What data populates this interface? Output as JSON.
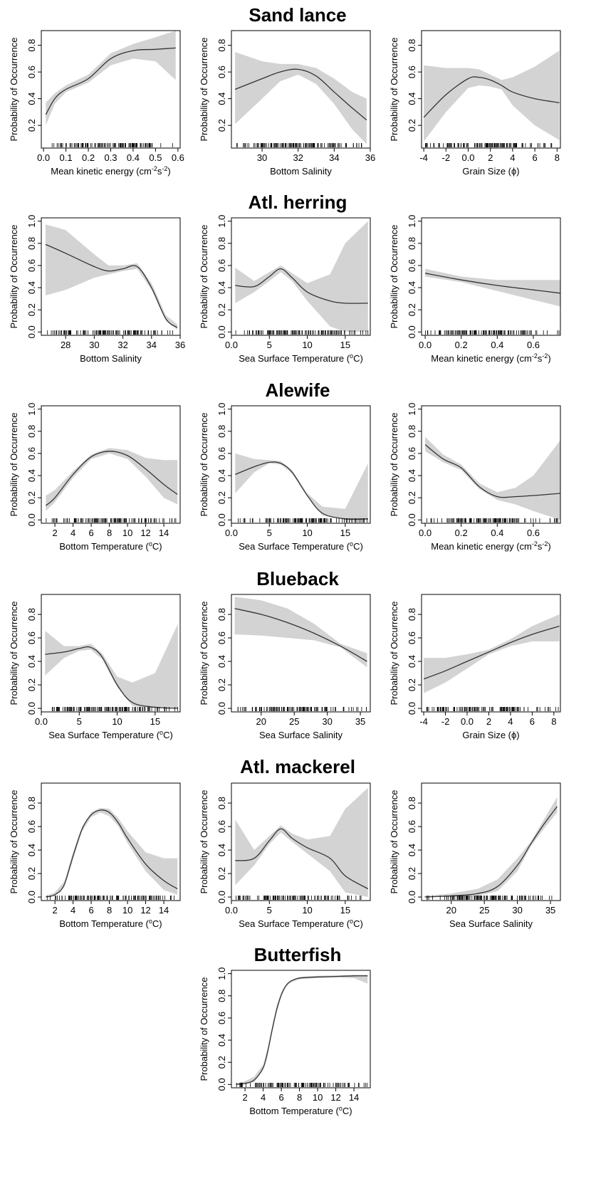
{
  "chart_data": [
    {
      "group": "Sand lance",
      "type": "line",
      "ylabel": "Probability of Occurrence",
      "xlabel": "Mean kinetic energy (cm$^{-2}$s$^{-2}$)",
      "xlim": [
        -0.01,
        0.61
      ],
      "ylim": [
        0.03,
        0.91
      ],
      "xticks": [
        0.0,
        0.1,
        0.2,
        0.3,
        0.4,
        0.5,
        0.6
      ],
      "yticks": [
        0.2,
        0.4,
        0.6,
        0.8
      ],
      "x": [
        0.01,
        0.05,
        0.1,
        0.2,
        0.3,
        0.4,
        0.5,
        0.59
      ],
      "y": [
        0.28,
        0.4,
        0.47,
        0.55,
        0.7,
        0.76,
        0.77,
        0.78
      ],
      "lower": [
        0.2,
        0.36,
        0.45,
        0.52,
        0.65,
        0.7,
        0.68,
        0.54
      ],
      "upper": [
        0.37,
        0.44,
        0.5,
        0.58,
        0.74,
        0.81,
        0.86,
        0.91
      ]
    },
    {
      "group": "Sand lance",
      "type": "line",
      "ylabel": "Probability of Occurrence",
      "xlabel": "Bottom Salinity",
      "xlim": [
        28.3,
        36.0
      ],
      "ylim": [
        0.03,
        0.91
      ],
      "xticks": [
        30,
        32,
        34,
        36
      ],
      "yticks": [
        0.2,
        0.4,
        0.6,
        0.8
      ],
      "x": [
        28.5,
        30,
        31,
        32,
        33,
        34,
        35,
        35.8
      ],
      "y": [
        0.47,
        0.55,
        0.6,
        0.62,
        0.57,
        0.45,
        0.33,
        0.24
      ],
      "lower": [
        0.21,
        0.4,
        0.53,
        0.58,
        0.51,
        0.36,
        0.17,
        0.06
      ],
      "upper": [
        0.75,
        0.68,
        0.66,
        0.66,
        0.63,
        0.55,
        0.45,
        0.4
      ]
    },
    {
      "group": "Sand lance",
      "type": "line",
      "ylabel": "Probability of Occurrence",
      "xlabel": "Grain Size (ϕ)",
      "xlim": [
        -4.2,
        8.3
      ],
      "ylim": [
        0.03,
        0.91
      ],
      "xticks": [
        -4,
        -2,
        0,
        2,
        4,
        6,
        8
      ],
      "yticks": [
        0.2,
        0.4,
        0.6,
        0.8
      ],
      "x": [
        -4,
        -2,
        0,
        1,
        2,
        3,
        4,
        6,
        8.2
      ],
      "y": [
        0.26,
        0.43,
        0.55,
        0.56,
        0.54,
        0.5,
        0.45,
        0.4,
        0.37
      ],
      "lower": [
        0.08,
        0.3,
        0.48,
        0.5,
        0.49,
        0.47,
        0.35,
        0.2,
        0.09
      ],
      "upper": [
        0.65,
        0.63,
        0.63,
        0.62,
        0.58,
        0.54,
        0.56,
        0.64,
        0.76
      ]
    },
    {
      "group": "Atl. herring",
      "type": "line",
      "ylabel": "Probability of Occurrence",
      "xlabel": "Bottom Salinity",
      "xlim": [
        26.3,
        36.0
      ],
      "ylim": [
        -0.03,
        1.03
      ],
      "xticks": [
        28,
        30,
        32,
        34,
        36
      ],
      "yticks": [
        0.0,
        0.2,
        0.4,
        0.6,
        0.8,
        1.0
      ],
      "x": [
        26.6,
        28,
        30,
        31,
        32,
        33,
        34,
        35,
        35.8
      ],
      "y": [
        0.79,
        0.71,
        0.59,
        0.55,
        0.57,
        0.59,
        0.4,
        0.12,
        0.04
      ],
      "lower": [
        0.33,
        0.38,
        0.49,
        0.52,
        0.55,
        0.57,
        0.38,
        0.1,
        0.02
      ],
      "upper": [
        0.97,
        0.92,
        0.7,
        0.6,
        0.6,
        0.62,
        0.44,
        0.15,
        0.07
      ]
    },
    {
      "group": "Atl. herring",
      "type": "line",
      "ylabel": "Probability of Occurrence",
      "xlabel": "Sea Surface Temperature ($^{o}$C)",
      "xlim": [
        0.0,
        18.3
      ],
      "ylim": [
        -0.03,
        1.03
      ],
      "xticks": [
        0,
        5,
        10,
        15
      ],
      "yticks": [
        0.0,
        0.2,
        0.4,
        0.6,
        0.8,
        1.0
      ],
      "x": [
        0.5,
        3,
        5,
        6.5,
        8,
        10,
        13,
        15,
        18
      ],
      "y": [
        0.42,
        0.41,
        0.5,
        0.57,
        0.49,
        0.36,
        0.28,
        0.26,
        0.26
      ],
      "lower": [
        0.26,
        0.36,
        0.46,
        0.54,
        0.46,
        0.28,
        0.05,
        0.0,
        0.0
      ],
      "upper": [
        0.58,
        0.46,
        0.54,
        0.6,
        0.53,
        0.44,
        0.52,
        0.8,
        1.0
      ]
    },
    {
      "group": "Atl. herring",
      "type": "line",
      "ylabel": "Probability of Occurrence",
      "xlabel": "Mean kinetic energy (cm$^{-2}$s$^{-2}$)",
      "xlim": [
        -0.02,
        0.75
      ],
      "ylim": [
        -0.03,
        1.03
      ],
      "xticks": [
        0.0,
        0.2,
        0.4,
        0.6
      ],
      "yticks": [
        0.0,
        0.2,
        0.4,
        0.6,
        0.8,
        1.0
      ],
      "x": [
        0.0,
        0.2,
        0.4,
        0.6,
        0.75
      ],
      "y": [
        0.53,
        0.47,
        0.42,
        0.38,
        0.35
      ],
      "lower": [
        0.5,
        0.45,
        0.37,
        0.29,
        0.23
      ],
      "upper": [
        0.57,
        0.5,
        0.47,
        0.47,
        0.47
      ]
    },
    {
      "group": "Alewife",
      "type": "line",
      "ylabel": "Probability of Occurrence",
      "xlabel": "Bottom Temperature ($^{o}$C)",
      "xlim": [
        0.5,
        15.8
      ],
      "ylim": [
        -0.03,
        1.03
      ],
      "xticks": [
        2,
        4,
        6,
        8,
        10,
        12,
        14
      ],
      "yticks": [
        0.0,
        0.2,
        0.4,
        0.6,
        0.8,
        1.0
      ],
      "x": [
        1,
        2,
        4,
        6,
        8,
        10,
        12,
        14,
        15.5
      ],
      "y": [
        0.13,
        0.2,
        0.41,
        0.57,
        0.62,
        0.58,
        0.46,
        0.32,
        0.23
      ],
      "lower": [
        0.08,
        0.16,
        0.38,
        0.55,
        0.6,
        0.55,
        0.39,
        0.2,
        0.14
      ],
      "upper": [
        0.22,
        0.27,
        0.44,
        0.59,
        0.65,
        0.63,
        0.56,
        0.54,
        0.54
      ]
    },
    {
      "group": "Alewife",
      "type": "line",
      "ylabel": "Probability of Occurrence",
      "xlabel": "Sea Surface Temperature ($^{o}$C)",
      "xlim": [
        0.0,
        18.3
      ],
      "ylim": [
        -0.03,
        1.03
      ],
      "xticks": [
        0,
        5,
        10,
        15
      ],
      "yticks": [
        0.0,
        0.2,
        0.4,
        0.6,
        0.8,
        1.0
      ],
      "x": [
        0.5,
        3,
        5,
        6.5,
        8,
        10,
        12,
        15,
        18
      ],
      "y": [
        0.41,
        0.48,
        0.52,
        0.51,
        0.43,
        0.22,
        0.06,
        0.01,
        0.01
      ],
      "lower": [
        0.24,
        0.43,
        0.51,
        0.5,
        0.42,
        0.21,
        0.04,
        0.0,
        0.0
      ],
      "upper": [
        0.6,
        0.55,
        0.54,
        0.53,
        0.45,
        0.24,
        0.12,
        0.1,
        0.51
      ]
    },
    {
      "group": "Alewife",
      "type": "line",
      "ylabel": "Probability of Occurrence",
      "xlabel": "Mean kinetic energy (cm$^{-2}$s$^{-2}$)",
      "xlim": [
        -0.02,
        0.75
      ],
      "ylim": [
        -0.03,
        1.03
      ],
      "xticks": [
        0.0,
        0.2,
        0.4,
        0.6
      ],
      "yticks": [
        0.0,
        0.2,
        0.4,
        0.6,
        0.8,
        1.0
      ],
      "x": [
        0.0,
        0.1,
        0.2,
        0.3,
        0.4,
        0.5,
        0.6,
        0.75
      ],
      "y": [
        0.68,
        0.55,
        0.47,
        0.3,
        0.21,
        0.21,
        0.22,
        0.24
      ],
      "lower": [
        0.62,
        0.52,
        0.45,
        0.28,
        0.18,
        0.14,
        0.08,
        0.0
      ],
      "upper": [
        0.75,
        0.59,
        0.5,
        0.33,
        0.25,
        0.29,
        0.4,
        0.72
      ]
    },
    {
      "group": "Blueback",
      "type": "line",
      "ylabel": "Probability of Occurrence",
      "xlabel": "Sea Surface Temperature ($^{o}$C)",
      "xlim": [
        0.0,
        18.3
      ],
      "ylim": [
        -0.03,
        0.97
      ],
      "xticks": [
        0,
        5,
        10,
        15
      ],
      "yticks": [
        0.0,
        0.2,
        0.4,
        0.6,
        0.8
      ],
      "x": [
        0.5,
        3,
        5,
        6.5,
        8,
        10,
        12,
        15,
        18
      ],
      "y": [
        0.46,
        0.48,
        0.51,
        0.52,
        0.44,
        0.2,
        0.05,
        0.01,
        0.0
      ],
      "lower": [
        0.28,
        0.43,
        0.49,
        0.5,
        0.42,
        0.18,
        0.02,
        0.0,
        0.0
      ],
      "upper": [
        0.66,
        0.53,
        0.53,
        0.55,
        0.47,
        0.27,
        0.22,
        0.3,
        0.72
      ]
    },
    {
      "group": "Blueback",
      "type": "line",
      "ylabel": "Probability of Occurrence",
      "xlabel": "Sea Surface Salinity",
      "xlim": [
        15.5,
        36.5
      ],
      "ylim": [
        -0.03,
        0.97
      ],
      "xticks": [
        20,
        25,
        30,
        35
      ],
      "yticks": [
        0.0,
        0.2,
        0.4,
        0.6,
        0.8
      ],
      "x": [
        16,
        20,
        24,
        28,
        32,
        36
      ],
      "y": [
        0.85,
        0.8,
        0.73,
        0.64,
        0.53,
        0.4
      ],
      "lower": [
        0.63,
        0.62,
        0.6,
        0.58,
        0.52,
        0.35
      ],
      "upper": [
        0.95,
        0.92,
        0.85,
        0.72,
        0.55,
        0.47
      ]
    },
    {
      "group": "Blueback",
      "type": "line",
      "ylabel": "Probability of Occurrence",
      "xlabel": "Grain Size (ϕ)",
      "xlim": [
        -4.2,
        8.6
      ],
      "ylim": [
        -0.03,
        0.97
      ],
      "xticks": [
        -4,
        -2,
        0,
        2,
        4,
        6,
        8
      ],
      "yticks": [
        0.0,
        0.2,
        0.4,
        0.6,
        0.8
      ],
      "x": [
        -4,
        -2,
        0,
        2,
        4,
        6,
        8.5
      ],
      "y": [
        0.25,
        0.32,
        0.4,
        0.48,
        0.56,
        0.63,
        0.7
      ],
      "lower": [
        0.13,
        0.22,
        0.34,
        0.46,
        0.53,
        0.57,
        0.57
      ],
      "upper": [
        0.43,
        0.43,
        0.46,
        0.5,
        0.59,
        0.7,
        0.8
      ]
    },
    {
      "group": "Atl. mackerel",
      "type": "line",
      "ylabel": "Probability of Occurrence",
      "xlabel": "Bottom Temperature ($^{o}$C)",
      "xlim": [
        0.5,
        15.8
      ],
      "ylim": [
        -0.03,
        0.97
      ],
      "xticks": [
        2,
        4,
        6,
        8,
        10,
        12,
        14
      ],
      "yticks": [
        0.0,
        0.2,
        0.4,
        0.6,
        0.8
      ],
      "x": [
        1,
        2,
        3,
        4,
        5,
        6,
        7,
        8,
        9,
        10,
        12,
        14,
        15.5
      ],
      "y": [
        0.0,
        0.02,
        0.1,
        0.35,
        0.58,
        0.7,
        0.74,
        0.72,
        0.63,
        0.5,
        0.28,
        0.14,
        0.07
      ],
      "lower": [
        0.0,
        0.01,
        0.08,
        0.32,
        0.56,
        0.68,
        0.72,
        0.69,
        0.6,
        0.46,
        0.22,
        0.06,
        0.02
      ],
      "upper": [
        0.01,
        0.04,
        0.13,
        0.38,
        0.6,
        0.72,
        0.76,
        0.75,
        0.67,
        0.56,
        0.38,
        0.33,
        0.33
      ]
    },
    {
      "group": "Atl. mackerel",
      "type": "line",
      "ylabel": "Probability of Occurrence",
      "xlabel": "Sea Surface Temperature ($^{o}$C)",
      "xlim": [
        0.0,
        18.3
      ],
      "ylim": [
        -0.03,
        0.97
      ],
      "xticks": [
        0,
        5,
        10,
        15
      ],
      "yticks": [
        0.0,
        0.2,
        0.4,
        0.6,
        0.8
      ],
      "x": [
        0.5,
        3,
        5,
        6.5,
        8,
        10,
        13,
        15,
        18
      ],
      "y": [
        0.31,
        0.33,
        0.48,
        0.58,
        0.5,
        0.42,
        0.33,
        0.18,
        0.07
      ],
      "lower": [
        0.1,
        0.27,
        0.45,
        0.55,
        0.47,
        0.37,
        0.22,
        0.04,
        0.0
      ],
      "upper": [
        0.66,
        0.4,
        0.52,
        0.61,
        0.54,
        0.49,
        0.52,
        0.75,
        0.93
      ]
    },
    {
      "group": "Atl. mackerel",
      "type": "line",
      "ylabel": "Probability of Occurrence",
      "xlabel": "Sea Surface Salinity",
      "xlim": [
        15.5,
        36.5
      ],
      "ylim": [
        -0.03,
        0.97
      ],
      "xticks": [
        20,
        25,
        30,
        35
      ],
      "yticks": [
        0.0,
        0.2,
        0.4,
        0.6,
        0.8
      ],
      "x": [
        16,
        20,
        24,
        27,
        30,
        32,
        34,
        36
      ],
      "y": [
        0.0,
        0.01,
        0.03,
        0.09,
        0.27,
        0.45,
        0.62,
        0.77
      ],
      "lower": [
        0.0,
        0.0,
        0.01,
        0.05,
        0.22,
        0.43,
        0.58,
        0.72
      ],
      "upper": [
        0.01,
        0.03,
        0.07,
        0.15,
        0.33,
        0.47,
        0.66,
        0.85
      ]
    },
    {
      "group": "Butterfish",
      "type": "line",
      "ylabel": "Probability of Occurrence",
      "xlabel": "Bottom Temperature ($^{o}$C)",
      "xlim": [
        0.5,
        15.8
      ],
      "ylim": [
        -0.03,
        1.03
      ],
      "xticks": [
        2,
        4,
        6,
        8,
        10,
        12,
        14
      ],
      "yticks": [
        0.0,
        0.2,
        0.4,
        0.6,
        0.8,
        1.0
      ],
      "x": [
        1,
        2,
        3,
        4,
        4.5,
        5,
        5.5,
        6,
        6.5,
        7,
        8,
        10,
        12,
        14,
        15.5
      ],
      "y": [
        0.0,
        0.01,
        0.04,
        0.15,
        0.3,
        0.5,
        0.68,
        0.81,
        0.89,
        0.93,
        0.96,
        0.97,
        0.975,
        0.98,
        0.98
      ],
      "lower": [
        0.0,
        0.0,
        0.02,
        0.13,
        0.27,
        0.47,
        0.65,
        0.79,
        0.88,
        0.92,
        0.95,
        0.96,
        0.965,
        0.96,
        0.91
      ],
      "upper": [
        0.01,
        0.03,
        0.07,
        0.18,
        0.33,
        0.53,
        0.71,
        0.83,
        0.9,
        0.94,
        0.97,
        0.98,
        0.985,
        0.99,
        0.99
      ]
    }
  ]
}
